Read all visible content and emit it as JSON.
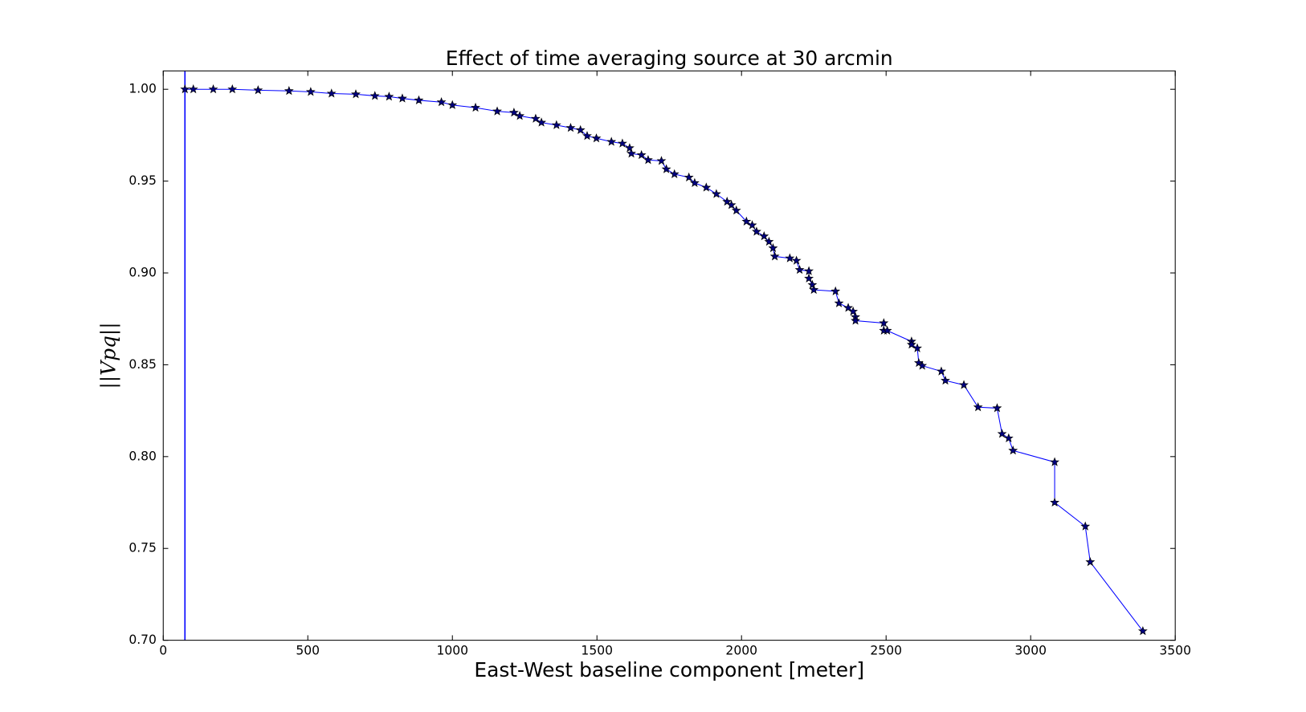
{
  "chart_data": {
    "type": "line",
    "title": "Effect of time averaging source at 30 arcmin",
    "xlabel": "East-West baseline component [meter]",
    "ylabel": "||Vpq||",
    "marker": "star",
    "vline": 75,
    "vline_color": "#0000ff",
    "series": [
      {
        "color": "#0000ff",
        "marker_color": "#000080",
        "x": [
          75,
          104,
          173,
          239,
          328,
          435,
          510,
          582,
          666,
          732,
          781,
          827,
          884,
          962,
          1000,
          1080,
          1155,
          1213,
          1233,
          1288,
          1308,
          1360,
          1409,
          1443,
          1466,
          1498,
          1550,
          1588,
          1613,
          1619,
          1654,
          1677,
          1723,
          1740,
          1768,
          1818,
          1838,
          1878,
          1913,
          1950,
          1965,
          1982,
          2017,
          2037,
          2052,
          2078,
          2095,
          2109,
          2115,
          2167,
          2190,
          2201,
          2233,
          2233,
          2245,
          2250,
          2325,
          2337,
          2369,
          2386,
          2394,
          2394,
          2492,
          2492,
          2504,
          2588,
          2588,
          2608,
          2613,
          2625,
          2691,
          2705,
          2769,
          2818,
          2884,
          2901,
          2924,
          2939,
          3083,
          3083,
          3189,
          3206,
          3388
        ],
        "values": [
          1.0,
          1.0,
          1.0,
          1.0,
          0.9995,
          0.9991,
          0.9986,
          0.9977,
          0.9973,
          0.9964,
          0.996,
          0.995,
          0.994,
          0.993,
          0.9914,
          0.99,
          0.988,
          0.9873,
          0.9855,
          0.984,
          0.9819,
          0.9805,
          0.979,
          0.9778,
          0.9746,
          0.9733,
          0.9714,
          0.9705,
          0.968,
          0.965,
          0.9642,
          0.9615,
          0.961,
          0.9565,
          0.9538,
          0.952,
          0.949,
          0.9465,
          0.943,
          0.9388,
          0.937,
          0.934,
          0.928,
          0.926,
          0.9225,
          0.92,
          0.917,
          0.9135,
          0.909,
          0.908,
          0.9067,
          0.9017,
          0.901,
          0.897,
          0.8935,
          0.8908,
          0.89,
          0.8835,
          0.881,
          0.879,
          0.876,
          0.874,
          0.8727,
          0.8686,
          0.8686,
          0.8627,
          0.861,
          0.859,
          0.851,
          0.8495,
          0.8464,
          0.8414,
          0.839,
          0.8269,
          0.8264,
          0.8124,
          0.81,
          0.8033,
          0.797,
          0.775,
          0.762,
          0.7426,
          0.705
        ]
      }
    ],
    "xlim": [
      0,
      3500
    ],
    "xticks": [
      0,
      500,
      1000,
      1500,
      2000,
      2500,
      3000,
      3500
    ],
    "ylim": [
      0.7,
      1.01
    ],
    "yticks": [
      {
        "value": 0.7,
        "label": "0.70"
      },
      {
        "value": 0.75,
        "label": "0.75"
      },
      {
        "value": 0.8,
        "label": "0.80"
      },
      {
        "value": 0.85,
        "label": "0.85"
      },
      {
        "value": 0.9,
        "label": "0.90"
      },
      {
        "value": 0.95,
        "label": "0.95"
      },
      {
        "value": 1.0,
        "label": "1.00"
      }
    ],
    "grid": false
  }
}
